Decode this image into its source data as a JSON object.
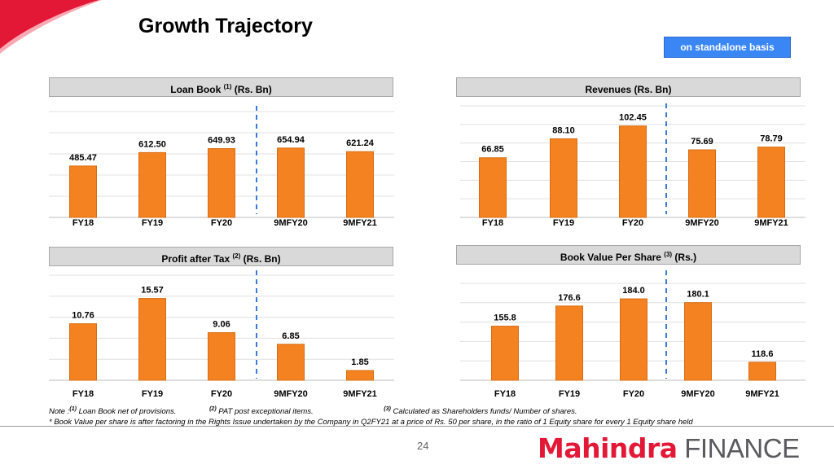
{
  "page": {
    "title": "Growth Trajectory",
    "badge": "on standalone basis",
    "page_number": "24",
    "logo": {
      "part1": "Mahindra",
      "part2": "FINANCE"
    },
    "notes": {
      "line1_prefix": "Note :",
      "note1_marker": "(1)",
      "note1_text": "Loan Book net of provisions.",
      "note2_marker": "(2)",
      "note2_text": "PAT post exceptional items.",
      "note3_marker": "(3)",
      "note3_text": "Calculated as Shareholders funds/ Number of shares.",
      "line2": "* Book Value per share is after factoring in the Rights Issue undertaken by the Company in Q2FY21 at a price of Rs. 50 per share, in the ratio of 1 Equity share for every 1 Equity share held"
    },
    "colors": {
      "bar": "#f58220",
      "bar_stroke": "#d86c12",
      "divider": "#3a7bd5",
      "corner_red": "#e31837",
      "badge": "#3a86f5"
    }
  },
  "panels": [
    {
      "header_pre": "Loan Book ",
      "header_sup": "(1)",
      "header_post": " (Rs. Bn)"
    },
    {
      "header_pre": "Revenues (Rs. Bn)",
      "header_sup": "",
      "header_post": ""
    },
    {
      "header_pre": "Profit after Tax ",
      "header_sup": "(2)",
      "header_post": " (Rs. Bn)"
    },
    {
      "header_pre": "Book Value Per Share ",
      "header_sup": "(3)",
      "header_post": " (Rs.)"
    }
  ],
  "chart_data": [
    {
      "type": "bar",
      "categories": [
        "FY18",
        "FY19",
        "FY20",
        "9MFY20",
        "9MFY21"
      ],
      "values": [
        485.47,
        612.5,
        649.93,
        654.94,
        621.24
      ],
      "labels": [
        "485.47",
        "612.50",
        "649.93",
        "654.94",
        "621.24"
      ],
      "ylim": [
        0,
        1000
      ],
      "grid": true
    },
    {
      "type": "bar",
      "categories": [
        "FY18",
        "FY19",
        "FY20",
        "9MFY20",
        "9MFY21"
      ],
      "values": [
        66.85,
        88.1,
        102.45,
        75.69,
        78.79
      ],
      "labels": [
        "66.85",
        "88.10",
        "102.45",
        "75.69",
        "78.79"
      ],
      "ylim": [
        0,
        125
      ],
      "grid": true
    },
    {
      "type": "bar",
      "categories": [
        "FY18",
        "FY19",
        "FY20",
        "9MFY20",
        "9MFY21"
      ],
      "values": [
        10.76,
        15.57,
        9.06,
        6.85,
        1.85
      ],
      "labels": [
        "10.76",
        "15.57",
        "9.06",
        "6.85",
        "1.85"
      ],
      "ylim": [
        0,
        20
      ],
      "grid": true
    },
    {
      "type": "bar",
      "categories": [
        "FY18",
        "FY19",
        "FY20",
        "9MFY20",
        "9MFY21"
      ],
      "values": [
        155.8,
        176.6,
        184.0,
        180.1,
        118.6
      ],
      "labels": [
        "155.8",
        "176.6",
        "184.0",
        "180.1",
        "118.6"
      ],
      "ylim": [
        100,
        200
      ],
      "grid": true
    }
  ]
}
